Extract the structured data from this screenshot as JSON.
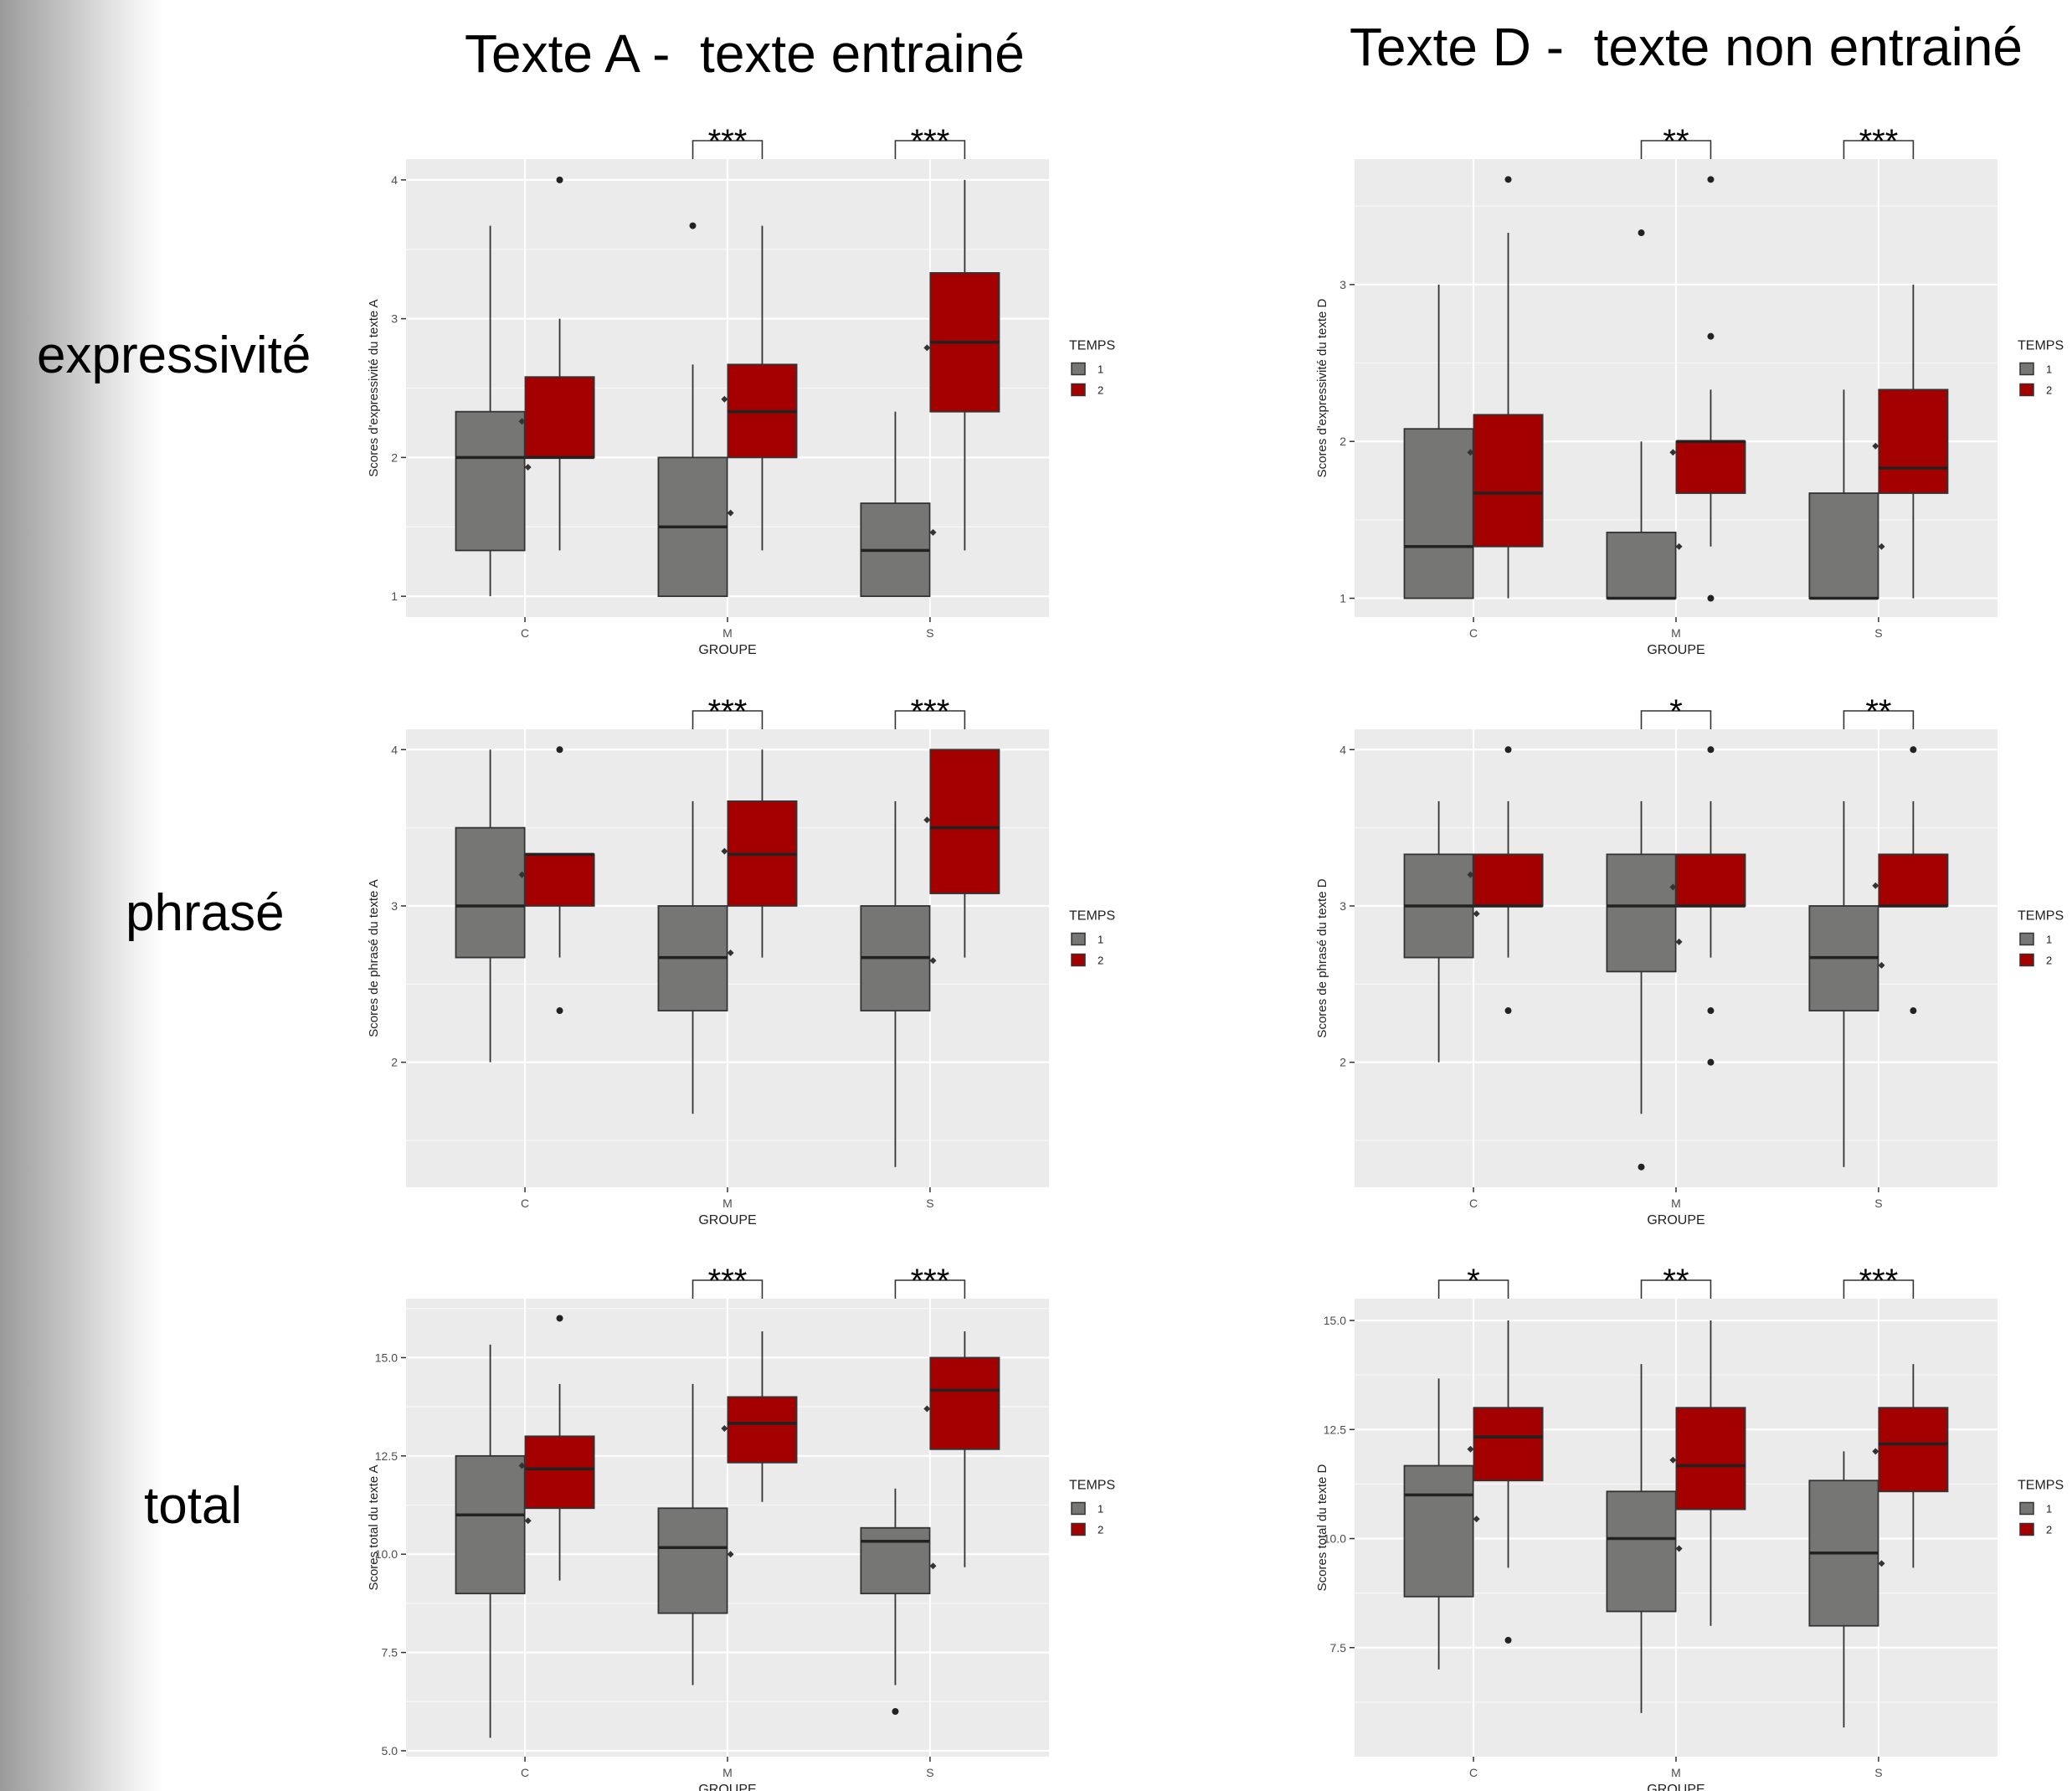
{
  "column_titles": [
    "Texte A -  texte entrainé",
    "Texte D -  texte non entrainé"
  ],
  "row_labels": [
    "expressivité",
    "phrasé",
    "total"
  ],
  "colors": {
    "temps1": "#767774",
    "temps2": "#a50000",
    "panel": "#ebebeb",
    "grid": "#ffffff"
  },
  "chart_data": [
    {
      "type": "boxplot",
      "xlabel": "GROUPE",
      "ylabel": "Scores d'expressivité du texte A",
      "categories": [
        "C",
        "M",
        "S"
      ],
      "legend_title": "TEMPS",
      "legend_entries": [
        "1",
        "2"
      ],
      "legend_position": "right",
      "grid": true,
      "ylim": [
        0.85,
        4.15
      ],
      "yticks": [
        1,
        2,
        3,
        4
      ],
      "ytick_labels": [
        "1",
        "2",
        "3",
        "4"
      ],
      "series": [
        {
          "name": "1",
          "boxes": [
            {
              "q1": 1.33,
              "median": 2.0,
              "q3": 2.33,
              "whislo": 1.0,
              "whishi": 3.67,
              "mean": 1.93,
              "outliers": []
            },
            {
              "q1": 1.0,
              "median": 1.5,
              "q3": 2.0,
              "whislo": 1.0,
              "whishi": 2.67,
              "mean": 1.6,
              "outliers": [
                3.67
              ]
            },
            {
              "q1": 1.0,
              "median": 1.33,
              "q3": 1.67,
              "whislo": 1.0,
              "whishi": 2.33,
              "mean": 1.46,
              "outliers": []
            }
          ]
        },
        {
          "name": "2",
          "boxes": [
            {
              "q1": 2.0,
              "median": 2.0,
              "q3": 2.58,
              "whislo": 1.33,
              "whishi": 3.0,
              "mean": 2.26,
              "outliers": [
                4.0
              ]
            },
            {
              "q1": 2.0,
              "median": 2.33,
              "q3": 2.67,
              "whislo": 1.33,
              "whishi": 3.67,
              "mean": 2.42,
              "outliers": []
            },
            {
              "q1": 2.33,
              "median": 2.83,
              "q3": 3.33,
              "whislo": 1.33,
              "whishi": 4.0,
              "mean": 2.79,
              "outliers": []
            }
          ]
        }
      ],
      "annotations": [
        {
          "category": "M",
          "label": "***"
        },
        {
          "category": "S",
          "label": "***"
        }
      ]
    },
    {
      "type": "boxplot",
      "xlabel": "GROUPE",
      "ylabel": "Scores d'expressivité du texte D",
      "categories": [
        "C",
        "M",
        "S"
      ],
      "legend_title": "TEMPS",
      "legend_entries": [
        "1",
        "2"
      ],
      "legend_position": "right",
      "grid": true,
      "ylim": [
        0.88,
        3.8
      ],
      "yticks": [
        1,
        2,
        3
      ],
      "ytick_labels": [
        "1",
        "2",
        "3"
      ],
      "series": [
        {
          "name": "1",
          "boxes": [
            {
              "q1": 1.0,
              "median": 1.33,
              "q3": 2.08,
              "whislo": 1.0,
              "whishi": 3.0,
              "mean": 1.67,
              "outliers": []
            },
            {
              "q1": 1.0,
              "median": 1.0,
              "q3": 1.42,
              "whislo": 1.0,
              "whishi": 2.0,
              "mean": 1.33,
              "outliers": [
                3.33
              ]
            },
            {
              "q1": 1.0,
              "median": 1.0,
              "q3": 1.67,
              "whislo": 1.0,
              "whishi": 2.33,
              "mean": 1.33,
              "outliers": []
            }
          ]
        },
        {
          "name": "2",
          "boxes": [
            {
              "q1": 1.33,
              "median": 1.67,
              "q3": 2.17,
              "whislo": 1.0,
              "whishi": 3.33,
              "mean": 1.93,
              "outliers": [
                3.67
              ]
            },
            {
              "q1": 1.67,
              "median": 2.0,
              "q3": 2.0,
              "whislo": 1.33,
              "whishi": 2.33,
              "mean": 1.93,
              "outliers": [
                3.67,
                2.67,
                1.0
              ]
            },
            {
              "q1": 1.67,
              "median": 1.83,
              "q3": 2.33,
              "whislo": 1.0,
              "whishi": 3.0,
              "mean": 1.97,
              "outliers": []
            }
          ]
        }
      ],
      "annotations": [
        {
          "category": "M",
          "label": "**"
        },
        {
          "category": "S",
          "label": "***"
        }
      ]
    },
    {
      "type": "boxplot",
      "xlabel": "GROUPE",
      "ylabel": "Scores de phrasé du texte A",
      "categories": [
        "C",
        "M",
        "S"
      ],
      "legend_title": "TEMPS",
      "legend_entries": [
        "1",
        "2"
      ],
      "legend_position": "right",
      "grid": true,
      "ylim": [
        1.2,
        4.13
      ],
      "yticks": [
        2,
        3,
        4
      ],
      "ytick_labels": [
        "2",
        "3",
        "4"
      ],
      "series": [
        {
          "name": "1",
          "boxes": [
            {
              "q1": 2.67,
              "median": 3.0,
              "q3": 3.5,
              "whislo": 2.0,
              "whishi": 4.0,
              "mean": 3.05,
              "outliers": []
            },
            {
              "q1": 2.33,
              "median": 2.67,
              "q3": 3.0,
              "whislo": 1.67,
              "whishi": 3.67,
              "mean": 2.7,
              "outliers": []
            },
            {
              "q1": 2.33,
              "median": 2.67,
              "q3": 3.0,
              "whislo": 1.33,
              "whishi": 3.67,
              "mean": 2.65,
              "outliers": []
            }
          ]
        },
        {
          "name": "2",
          "boxes": [
            {
              "q1": 3.0,
              "median": 3.33,
              "q3": 3.33,
              "whislo": 2.67,
              "whishi": 3.33,
              "mean": 3.2,
              "outliers": [
                4.0,
                2.33
              ]
            },
            {
              "q1": 3.0,
              "median": 3.33,
              "q3": 3.67,
              "whislo": 2.67,
              "whishi": 4.0,
              "mean": 3.35,
              "outliers": []
            },
            {
              "q1": 3.08,
              "median": 3.5,
              "q3": 4.0,
              "whislo": 2.67,
              "whishi": 4.0,
              "mean": 3.55,
              "outliers": []
            }
          ]
        }
      ],
      "annotations": [
        {
          "category": "M",
          "label": "***"
        },
        {
          "category": "S",
          "label": "***"
        }
      ]
    },
    {
      "type": "boxplot",
      "xlabel": "GROUPE",
      "ylabel": "Scores de phrasé du texte D",
      "categories": [
        "C",
        "M",
        "S"
      ],
      "legend_title": "TEMPS",
      "legend_entries": [
        "1",
        "2"
      ],
      "legend_position": "right",
      "grid": true,
      "ylim": [
        1.2,
        4.13
      ],
      "yticks": [
        2,
        3,
        4
      ],
      "ytick_labels": [
        "2",
        "3",
        "4"
      ],
      "series": [
        {
          "name": "1",
          "boxes": [
            {
              "q1": 2.67,
              "median": 3.0,
              "q3": 3.33,
              "whislo": 2.0,
              "whishi": 3.67,
              "mean": 2.95,
              "outliers": []
            },
            {
              "q1": 2.58,
              "median": 3.0,
              "q3": 3.33,
              "whislo": 1.67,
              "whishi": 3.67,
              "mean": 2.77,
              "outliers": [
                1.33
              ]
            },
            {
              "q1": 2.33,
              "median": 2.67,
              "q3": 3.0,
              "whislo": 1.33,
              "whishi": 3.67,
              "mean": 2.62,
              "outliers": []
            }
          ]
        },
        {
          "name": "2",
          "boxes": [
            {
              "q1": 3.0,
              "median": 3.0,
              "q3": 3.33,
              "whislo": 2.67,
              "whishi": 3.67,
              "mean": 3.2,
              "outliers": [
                4.0,
                2.33
              ]
            },
            {
              "q1": 3.0,
              "median": 3.0,
              "q3": 3.33,
              "whislo": 2.67,
              "whishi": 3.67,
              "mean": 3.12,
              "outliers": [
                4.0,
                2.33,
                2.0
              ]
            },
            {
              "q1": 3.0,
              "median": 3.0,
              "q3": 3.33,
              "whislo": 3.0,
              "whishi": 3.67,
              "mean": 3.13,
              "outliers": [
                4.0,
                2.33
              ]
            }
          ]
        }
      ],
      "annotations": [
        {
          "category": "M",
          "label": "*"
        },
        {
          "category": "S",
          "label": "**"
        }
      ]
    },
    {
      "type": "boxplot",
      "xlabel": "GROUPE",
      "ylabel": "Scores total du texte A",
      "categories": [
        "C",
        "M",
        "S"
      ],
      "legend_title": "TEMPS",
      "legend_entries": [
        "1",
        "2"
      ],
      "legend_position": "right",
      "grid": true,
      "ylim": [
        4.85,
        16.5
      ],
      "yticks": [
        5.0,
        7.5,
        10.0,
        12.5,
        15.0
      ],
      "ytick_labels": [
        "5.0",
        "7.5",
        "10.0",
        "12.5",
        "15.0"
      ],
      "series": [
        {
          "name": "1",
          "boxes": [
            {
              "q1": 9.0,
              "median": 11.0,
              "q3": 12.5,
              "whislo": 5.33,
              "whishi": 15.33,
              "mean": 10.85,
              "outliers": []
            },
            {
              "q1": 8.5,
              "median": 10.17,
              "q3": 11.17,
              "whislo": 6.67,
              "whishi": 14.33,
              "mean": 10.0,
              "outliers": []
            },
            {
              "q1": 9.0,
              "median": 10.33,
              "q3": 10.67,
              "whislo": 6.67,
              "whishi": 11.67,
              "mean": 9.7,
              "outliers": [
                6.0
              ]
            }
          ]
        },
        {
          "name": "2",
          "boxes": [
            {
              "q1": 11.17,
              "median": 12.17,
              "q3": 13.0,
              "whislo": 9.33,
              "whishi": 14.33,
              "mean": 12.25,
              "outliers": [
                16.0
              ]
            },
            {
              "q1": 12.33,
              "median": 13.33,
              "q3": 14.0,
              "whislo": 11.33,
              "whishi": 15.67,
              "mean": 13.2,
              "outliers": []
            },
            {
              "q1": 12.67,
              "median": 14.17,
              "q3": 15.0,
              "whislo": 9.67,
              "whishi": 15.67,
              "mean": 13.7,
              "outliers": []
            }
          ]
        }
      ],
      "annotations": [
        {
          "category": "M",
          "label": "***"
        },
        {
          "category": "S",
          "label": "***"
        }
      ]
    },
    {
      "type": "boxplot",
      "xlabel": "GROUPE",
      "ylabel": "Scores total du texte D",
      "categories": [
        "C",
        "M",
        "S"
      ],
      "legend_title": "TEMPS",
      "legend_entries": [
        "1",
        "2"
      ],
      "legend_position": "right",
      "grid": true,
      "ylim": [
        5.0,
        15.5
      ],
      "yticks": [
        7.5,
        10.0,
        12.5,
        15.0
      ],
      "ytick_labels": [
        "7.5",
        "10.0",
        "12.5",
        "15.0"
      ],
      "series": [
        {
          "name": "1",
          "boxes": [
            {
              "q1": 8.67,
              "median": 11.0,
              "q3": 11.67,
              "whislo": 7.0,
              "whishi": 13.67,
              "mean": 10.45,
              "outliers": []
            },
            {
              "q1": 8.33,
              "median": 10.0,
              "q3": 11.08,
              "whislo": 6.0,
              "whishi": 14.0,
              "mean": 9.77,
              "outliers": []
            },
            {
              "q1": 8.0,
              "median": 9.67,
              "q3": 11.33,
              "whislo": 5.67,
              "whishi": 12.0,
              "mean": 9.43,
              "outliers": []
            }
          ]
        },
        {
          "name": "2",
          "boxes": [
            {
              "q1": 11.33,
              "median": 12.33,
              "q3": 13.0,
              "whislo": 9.33,
              "whishi": 15.0,
              "mean": 12.05,
              "outliers": [
                7.67
              ]
            },
            {
              "q1": 10.67,
              "median": 11.67,
              "q3": 13.0,
              "whislo": 8.0,
              "whishi": 15.0,
              "mean": 11.8,
              "outliers": []
            },
            {
              "q1": 11.08,
              "median": 12.17,
              "q3": 13.0,
              "whislo": 9.33,
              "whishi": 14.0,
              "mean": 12.0,
              "outliers": []
            }
          ]
        }
      ],
      "annotations": [
        {
          "category": "C",
          "label": "*"
        },
        {
          "category": "M",
          "label": "**"
        },
        {
          "category": "S",
          "label": "***"
        }
      ]
    }
  ]
}
